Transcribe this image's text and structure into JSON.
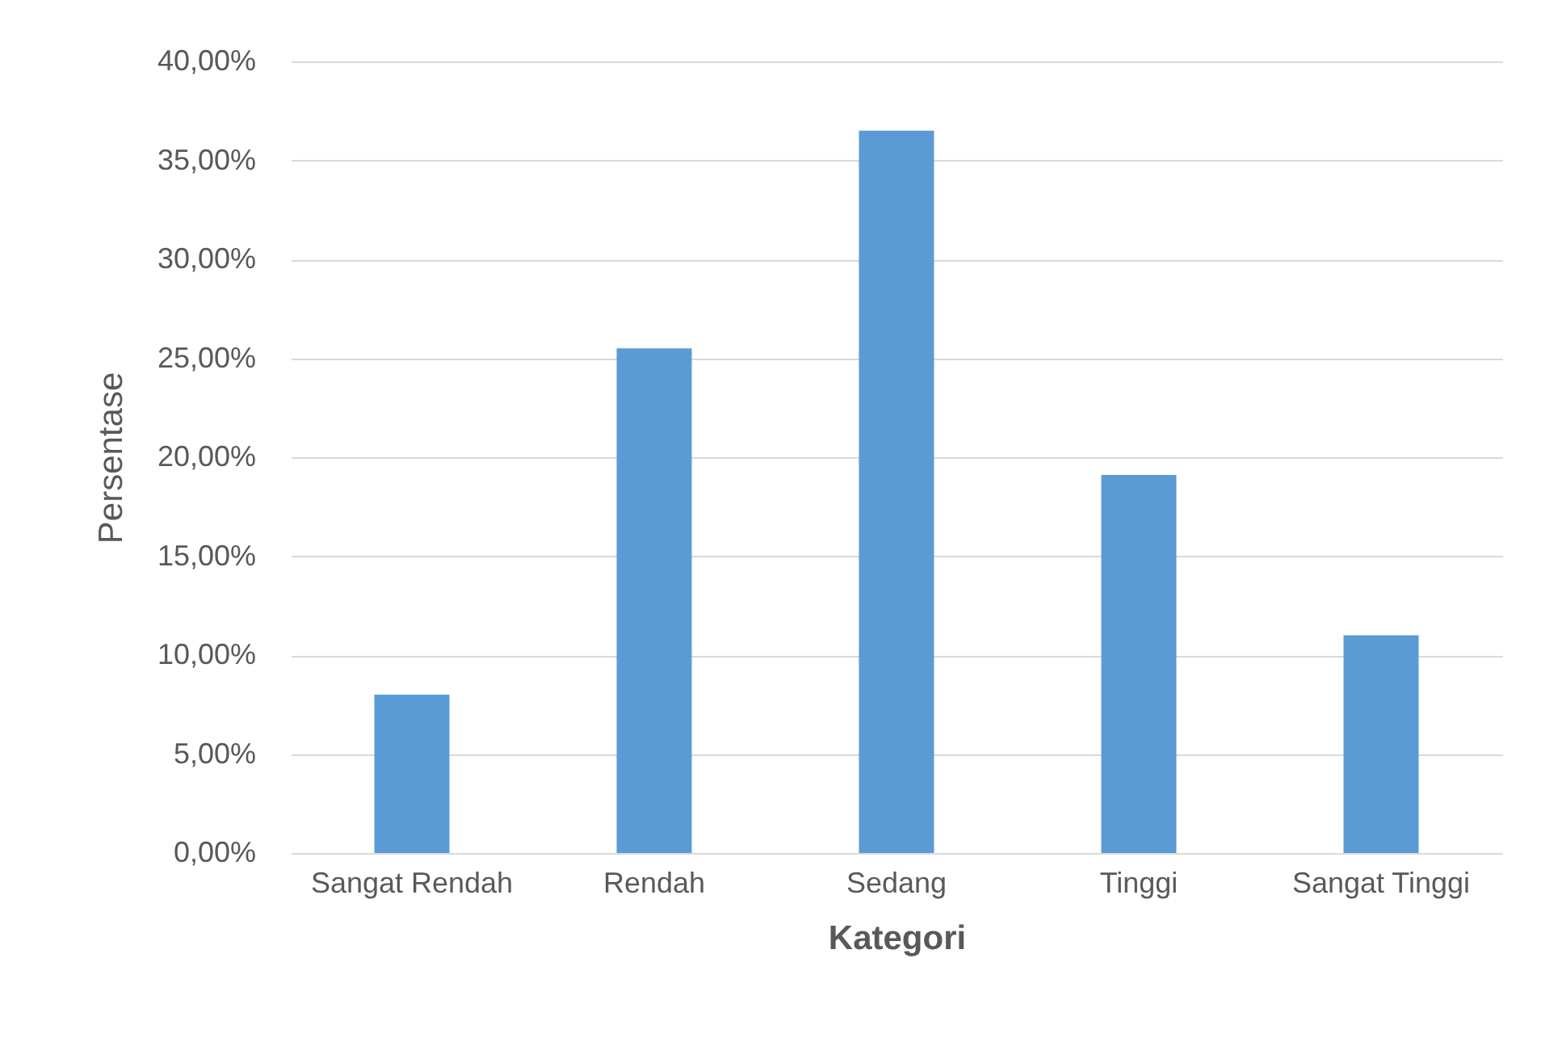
{
  "chart_data": {
    "type": "bar",
    "xlabel": "Kategori",
    "ylabel": "Persentase",
    "categories": [
      "Sangat Rendah",
      "Rendah",
      "Sedang",
      "Tinggi",
      "Sangat Tinggi"
    ],
    "values": [
      8.0,
      25.5,
      36.5,
      19.1,
      11.0
    ],
    "color": "#5b9bd5",
    "ylim": [
      0,
      40
    ],
    "yticks": [
      {
        "value": 0,
        "label": "0,00%"
      },
      {
        "value": 5,
        "label": "5,00%"
      },
      {
        "value": 10,
        "label": "10,00%"
      },
      {
        "value": 15,
        "label": "15,00%"
      },
      {
        "value": 20,
        "label": "20,00%"
      },
      {
        "value": 25,
        "label": "25,00%"
      },
      {
        "value": 30,
        "label": "30,00%"
      },
      {
        "value": 35,
        "label": "35,00%"
      },
      {
        "value": 40,
        "label": "40,00%"
      }
    ],
    "grid": "y"
  }
}
